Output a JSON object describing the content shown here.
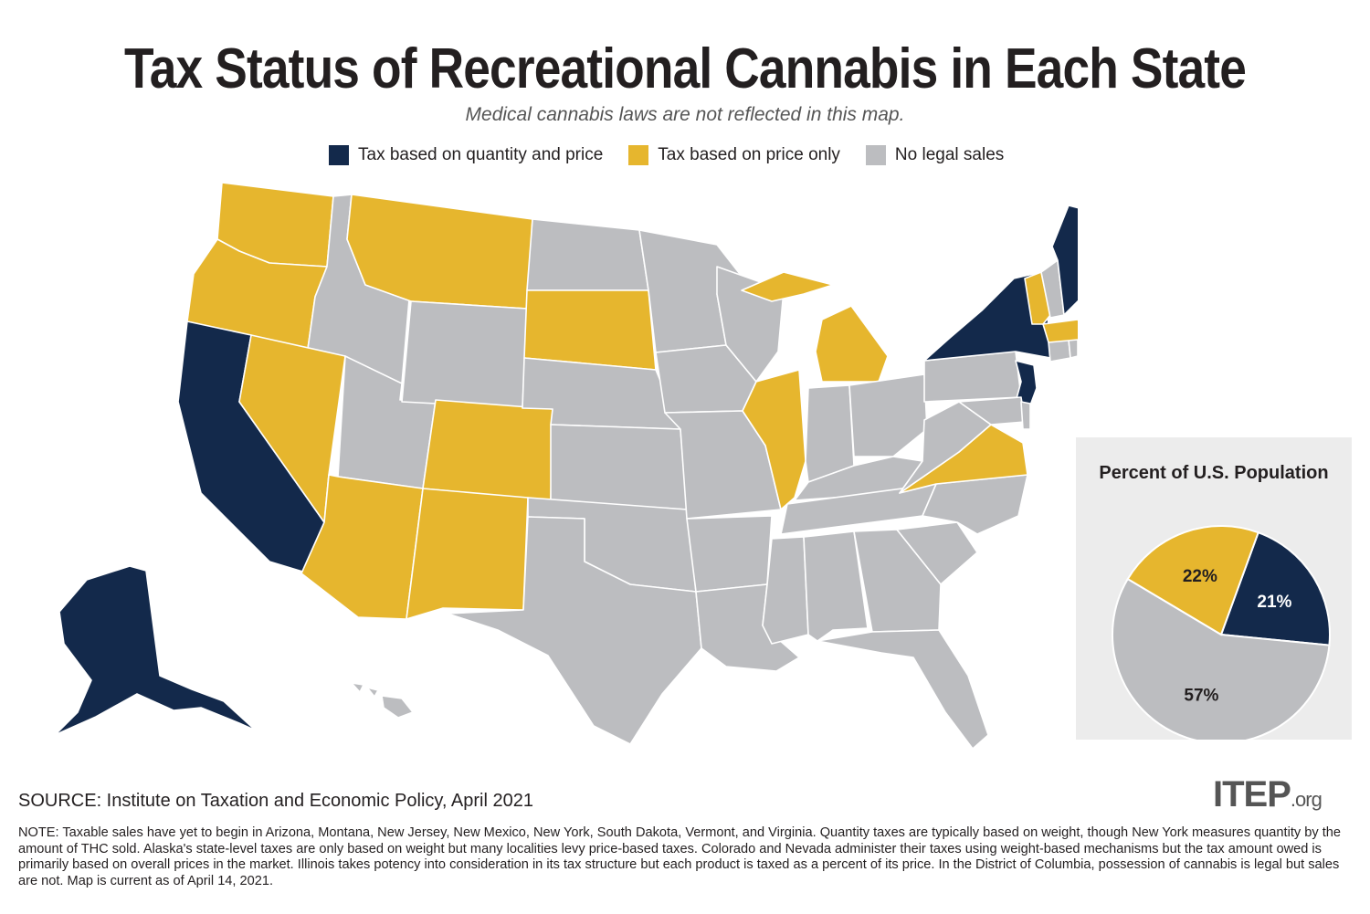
{
  "title": "Tax Status of Recreational Cannabis in Each State",
  "subtitle": "Medical cannabis laws are not reflected in this map.",
  "colors": {
    "quantity_and_price": "#13294b",
    "price_only": "#e6b62e",
    "no_sales": "#bcbdc0",
    "pie_background": "#ececec"
  },
  "legend": [
    {
      "label": "Tax based on quantity and price",
      "color": "#13294b"
    },
    {
      "label": "Tax based on price only",
      "color": "#e6b62e"
    },
    {
      "label": "No legal sales",
      "color": "#bcbdc0"
    }
  ],
  "chart_data": {
    "type": "pie",
    "title": "Percent of U.S. Population",
    "slices": [
      {
        "label": "21%",
        "value": 21,
        "category": "Tax based on quantity and price",
        "color": "#13294b"
      },
      {
        "label": "57%",
        "value": 57,
        "category": "No legal sales",
        "color": "#bcbdc0"
      },
      {
        "label": "22%",
        "value": 22,
        "category": "Tax based on price only",
        "color": "#e6b62e"
      }
    ]
  },
  "states": {
    "quantity_and_price": [
      "AK",
      "CA",
      "NY",
      "NJ",
      "ME"
    ],
    "price_only": [
      "WA",
      "OR",
      "NV",
      "AZ",
      "MT",
      "CO",
      "NM",
      "SD",
      "IL",
      "MI",
      "VA",
      "VT",
      "MA"
    ],
    "no_sales": [
      "ID",
      "UT",
      "WY",
      "ND",
      "NE",
      "KS",
      "OK",
      "TX",
      "MN",
      "IA",
      "MO",
      "AR",
      "LA",
      "WI",
      "IN",
      "OH",
      "KY",
      "TN",
      "MS",
      "AL",
      "GA",
      "FL",
      "SC",
      "NC",
      "WV",
      "PA",
      "MD",
      "DE",
      "CT",
      "RI",
      "NH",
      "HI"
    ]
  },
  "source": "SOURCE: Institute on Taxation and Economic Policy, April 2021",
  "logo": {
    "main": "ITEP",
    "suffix": ".org"
  },
  "note": "NOTE: Taxable sales have yet to begin in Arizona, Montana, New Jersey, New Mexico, New York, South Dakota, Vermont, and Virginia. Quantity taxes are typically based on weight, though New York measures quantity by the amount of THC sold. Alaska's state-level taxes are only based on weight but many localities levy price-based taxes. Colorado and Nevada administer their taxes using weight-based mechanisms but the tax amount owed is primarily based on overall prices in the market. Illinois takes potency into consideration in its tax structure but each product is taxed as a percent of its price. In the District of Columbia, possession of cannabis is legal but sales are not. Map is current as of April 14, 2021."
}
